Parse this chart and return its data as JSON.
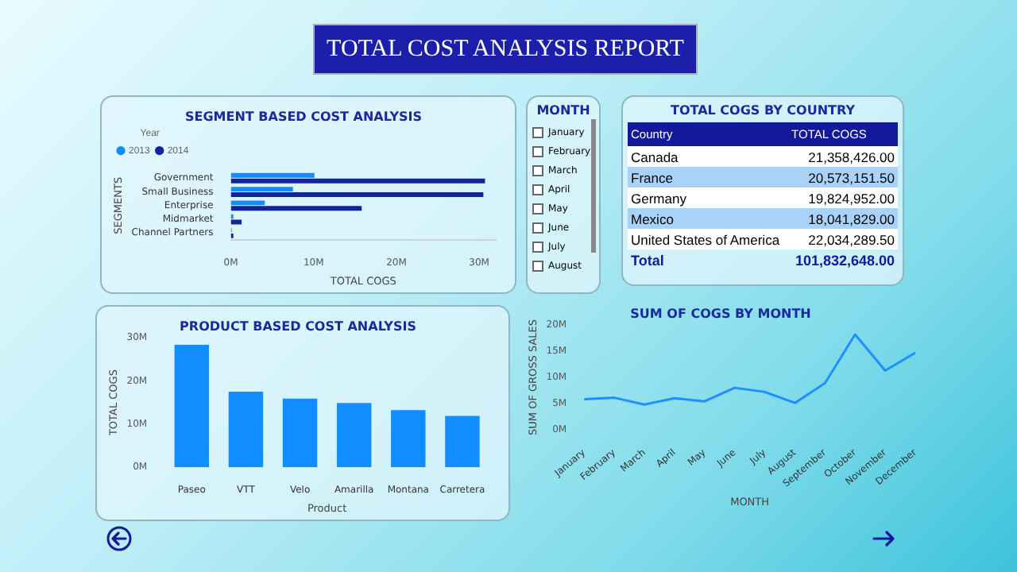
{
  "chart_data": [
    {
      "type": "other",
      "title": "TOTAL COST ANALYSIS REPORT"
    },
    {
      "type": "bar",
      "title": "SEGMENT BASED COST ANALYSIS",
      "orientation": "horizontal",
      "categories": [
        "Government",
        "Small Business",
        "Enterprise",
        "Midmarket",
        "Channel Partners"
      ],
      "xlabel": "TOTAL COGS",
      "ylabel": "SEGMENTS",
      "legend_title": "Year",
      "legend": "top left",
      "series": [
        {
          "name": "2013",
          "color": "#118dff",
          "values": [
            10.1,
            7.5,
            4.1,
            0.3,
            0.1
          ]
        },
        {
          "name": "2014",
          "color": "#12239e",
          "values": [
            30.7,
            30.5,
            15.8,
            1.3,
            0.3
          ]
        }
      ],
      "xlim": [
        0,
        32
      ],
      "xticks": [
        {
          "value": 0,
          "label": "0M"
        },
        {
          "value": 10,
          "label": "10M"
        },
        {
          "value": 20,
          "label": "20M"
        },
        {
          "value": 30,
          "label": "30M"
        }
      ]
    },
    {
      "type": "other",
      "title": "MONTH",
      "categories": [
        "January",
        "February",
        "March",
        "April",
        "May",
        "June",
        "July",
        "August"
      ]
    },
    {
      "type": "other",
      "title": "TOTAL COGS BY COUNTRY",
      "xlabel": "Country",
      "ylabel": "TOTAL COGS",
      "categories": [
        "Canada",
        "France",
        "Germany",
        "Mexico",
        "United States of America"
      ],
      "value_labels": [
        "21,358,426.00",
        "20,573,151.50",
        "19,824,952.00",
        "18,041,829.00",
        "22,034,289.50"
      ],
      "annotations": [
        "Total"
      ],
      "totals": [
        "101,832,648.00"
      ]
    },
    {
      "type": "bar",
      "title": "PRODUCT BASED COST ANALYSIS",
      "categories": [
        "Paseo",
        "VTT",
        "Velo",
        "Amarilla",
        "Montana",
        "Carretera"
      ],
      "values": [
        28.4,
        17.5,
        15.9,
        14.9,
        13.2,
        11.9
      ],
      "color": "#118dff",
      "xlabel": "Product",
      "ylabel": "TOTAL COGS",
      "ylim": [
        0,
        30
      ],
      "yticks": [
        {
          "value": 0,
          "label": "0M"
        },
        {
          "value": 10,
          "label": "10M"
        },
        {
          "value": 20,
          "label": "20M"
        },
        {
          "value": 30,
          "label": "30M"
        }
      ]
    },
    {
      "type": "line",
      "title": "SUM OF COGS BY MONTH",
      "categories": [
        "January",
        "February",
        "March",
        "April",
        "May",
        "June",
        "July",
        "August",
        "September",
        "October",
        "November",
        "December"
      ],
      "values": [
        5.8,
        6.1,
        4.8,
        6.0,
        5.4,
        8.0,
        7.2,
        5.1,
        8.9,
        18.2,
        11.3,
        14.7
      ],
      "color": "#1f8fff",
      "marker": "none",
      "xlabel": "MONTH",
      "ylabel": "SUM OF GROSS SALES",
      "ylim": [
        0,
        20
      ],
      "yticks": [
        {
          "value": 0,
          "label": "0M"
        },
        {
          "value": 5,
          "label": "5M"
        },
        {
          "value": 10,
          "label": "10M"
        },
        {
          "value": 15,
          "label": "15M"
        },
        {
          "value": 20,
          "label": "20M"
        }
      ]
    }
  ]
}
